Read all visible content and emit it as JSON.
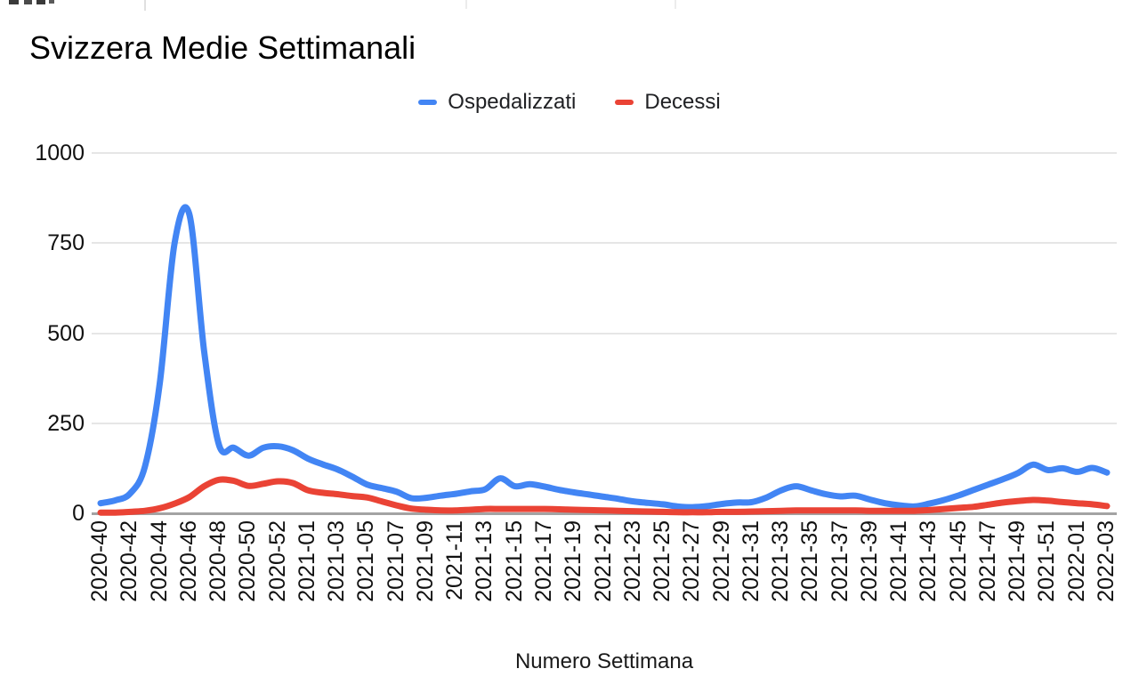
{
  "header": {
    "title": "Svizzera Medie Settimanali"
  },
  "axis": {
    "x_title": "Numero Settimana"
  },
  "legend": {
    "items": [
      {
        "label": "Ospedalizzati",
        "color": "#4285f4",
        "marker": "dash"
      },
      {
        "label": "Decessi",
        "color": "#ea4335",
        "marker": "dash"
      }
    ]
  },
  "chart_data": {
    "type": "line",
    "title": "Svizzera Medie Settimanali",
    "xlabel": "Numero Settimana",
    "ylabel": "",
    "ylim": [
      0,
      1000
    ],
    "yticks": [
      0,
      250,
      500,
      750,
      1000
    ],
    "grid": "horizontal",
    "legend_position": "top",
    "line_smoothing": true,
    "x": [
      "2020-40",
      "2020-41",
      "2020-42",
      "2020-43",
      "2020-44",
      "2020-45",
      "2020-46",
      "2020-47",
      "2020-48",
      "2020-49",
      "2020-50",
      "2020-51",
      "2020-52",
      "2020-53",
      "2021-01",
      "2021-02",
      "2021-03",
      "2021-04",
      "2021-05",
      "2021-06",
      "2021-07",
      "2021-08",
      "2021-09",
      "2021-10",
      "2021-11",
      "2021-12",
      "2021-13",
      "2021-14",
      "2021-15",
      "2021-16",
      "2021-17",
      "2021-18",
      "2021-19",
      "2021-20",
      "2021-21",
      "2021-22",
      "2021-23",
      "2021-24",
      "2021-25",
      "2021-26",
      "2021-27",
      "2021-28",
      "2021-29",
      "2021-30",
      "2021-31",
      "2021-32",
      "2021-33",
      "2021-34",
      "2021-35",
      "2021-36",
      "2021-37",
      "2021-38",
      "2021-39",
      "2021-40",
      "2021-41",
      "2021-42",
      "2021-43",
      "2021-44",
      "2021-45",
      "2021-46",
      "2021-47",
      "2021-48",
      "2021-49",
      "2021-50",
      "2021-51",
      "2021-52",
      "2022-01",
      "2022-02",
      "2022-03"
    ],
    "x_tick_labels": [
      "2020-40",
      "2020-42",
      "2020-44",
      "2020-46",
      "2020-48",
      "2020-50",
      "2020-52",
      "2021-01",
      "2021-03",
      "2021-05",
      "2021-07",
      "2021-09",
      "2021-11",
      "2021-13",
      "2021-15",
      "2021-17",
      "2021-19",
      "2021-21",
      "2021-23",
      "2021-25",
      "2021-27",
      "2021-29",
      "2021-31",
      "2021-33",
      "2021-35",
      "2021-37",
      "2021-39",
      "2021-41",
      "2021-43",
      "2021-45",
      "2021-47",
      "2021-49",
      "2021-51",
      "2022-01",
      "2022-03"
    ],
    "series": [
      {
        "name": "Ospedalizzati",
        "color": "#4285f4",
        "values": [
          28,
          36,
          55,
          130,
          360,
          750,
          830,
          450,
          190,
          182,
          160,
          182,
          186,
          175,
          152,
          136,
          122,
          102,
          80,
          70,
          60,
          42,
          43,
          49,
          54,
          61,
          67,
          97,
          75,
          81,
          74,
          65,
          58,
          52,
          46,
          40,
          33,
          29,
          25,
          19,
          17,
          20,
          26,
          30,
          31,
          44,
          64,
          75,
          64,
          53,
          47,
          49,
          38,
          28,
          22,
          19,
          27,
          37,
          50,
          65,
          80,
          95,
          112,
          135,
          120,
          125,
          115,
          126,
          113
        ]
      },
      {
        "name": "Decessi",
        "color": "#ea4335",
        "values": [
          2,
          2,
          4,
          7,
          14,
          27,
          45,
          75,
          93,
          90,
          76,
          82,
          89,
          84,
          64,
          57,
          53,
          48,
          44,
          33,
          22,
          13,
          10,
          8,
          8,
          10,
          12,
          12,
          12,
          12,
          12,
          11,
          10,
          9,
          8,
          7,
          6,
          5,
          4,
          3,
          3,
          3,
          4,
          4,
          5,
          6,
          7,
          8,
          8,
          8,
          8,
          8,
          7,
          7,
          7,
          7,
          9,
          12,
          15,
          18,
          24,
          30,
          34,
          37,
          35,
          31,
          28,
          25,
          20
        ]
      }
    ]
  }
}
